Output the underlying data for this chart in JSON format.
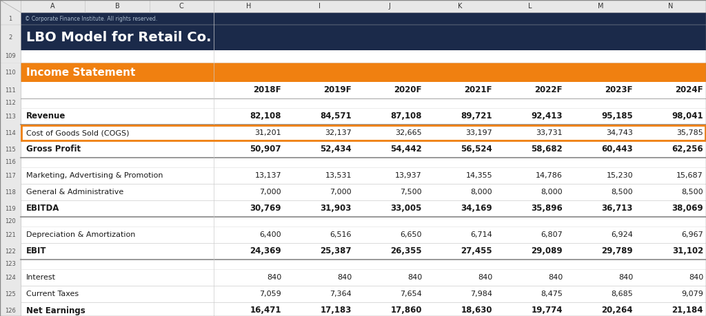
{
  "title_row1": "© Corporate Finance Institute. All rights reserved.",
  "title_row2": "LBO Model for Retail Co.",
  "section_header": "Income Statement",
  "years": [
    "2018F",
    "2019F",
    "2020F",
    "2021F",
    "2022F",
    "2023F",
    "2024F"
  ],
  "navy_bg": "#1B2A4A",
  "orange_bg": "#F08010",
  "highlight_border": "#F08010",
  "row_num_bg": "#E8E8E8",
  "col_hdr_bg": "#E8E8E8",
  "grid_line": "#BBBBBB",
  "body_bg": "#FFFFFF",
  "text_dark": "#1A1A1A",
  "text_light": "#AAAACC",
  "row_num_text": "#555555",
  "figsize": [
    10.24,
    4.59
  ],
  "dpi": 100,
  "rows": [
    {
      "label": "Revenue",
      "bold": true,
      "values": [
        "82,108",
        "84,571",
        "87,108",
        "89,721",
        "92,413",
        "95,185",
        "98,041"
      ],
      "spacer_before": false,
      "highlight": false,
      "row_num": 113
    },
    {
      "label": "Cost of Goods Sold (COGS)",
      "bold": false,
      "values": [
        "31,201",
        "32,137",
        "32,665",
        "33,197",
        "33,731",
        "34,743",
        "35,785"
      ],
      "spacer_before": false,
      "highlight": true,
      "row_num": 114
    },
    {
      "label": "Gross Profit",
      "bold": true,
      "values": [
        "50,907",
        "52,434",
        "54,442",
        "56,524",
        "58,682",
        "60,443",
        "62,256"
      ],
      "spacer_before": false,
      "highlight": false,
      "row_num": 115
    },
    {
      "label": "Marketing, Advertising & Promotion",
      "bold": false,
      "values": [
        "13,137",
        "13,531",
        "13,937",
        "14,355",
        "14,786",
        "15,230",
        "15,687"
      ],
      "spacer_before": true,
      "highlight": false,
      "row_num": 117
    },
    {
      "label": "General & Administrative",
      "bold": false,
      "values": [
        "7,000",
        "7,000",
        "7,500",
        "8,000",
        "8,000",
        "8,500",
        "8,500"
      ],
      "spacer_before": false,
      "highlight": false,
      "row_num": 118
    },
    {
      "label": "EBITDA",
      "bold": true,
      "values": [
        "30,769",
        "31,903",
        "33,005",
        "34,169",
        "35,896",
        "36,713",
        "38,069"
      ],
      "spacer_before": false,
      "highlight": false,
      "row_num": 119
    },
    {
      "label": "Depreciation & Amortization",
      "bold": false,
      "values": [
        "6,400",
        "6,516",
        "6,650",
        "6,714",
        "6,807",
        "6,924",
        "6,967"
      ],
      "spacer_before": true,
      "highlight": false,
      "row_num": 121
    },
    {
      "label": "EBIT",
      "bold": true,
      "values": [
        "24,369",
        "25,387",
        "26,355",
        "27,455",
        "29,089",
        "29,789",
        "31,102"
      ],
      "spacer_before": false,
      "highlight": false,
      "row_num": 122
    },
    {
      "label": "Interest",
      "bold": false,
      "values": [
        "840",
        "840",
        "840",
        "840",
        "840",
        "840",
        "840"
      ],
      "spacer_before": true,
      "highlight": false,
      "row_num": 124
    },
    {
      "label": "Current Taxes",
      "bold": false,
      "values": [
        "7,059",
        "7,364",
        "7,654",
        "7,984",
        "8,475",
        "8,685",
        "9,079"
      ],
      "spacer_before": false,
      "highlight": false,
      "row_num": 125
    },
    {
      "label": "Net Earnings",
      "bold": true,
      "values": [
        "16,471",
        "17,183",
        "17,860",
        "18,630",
        "19,774",
        "20,264",
        "21,184"
      ],
      "spacer_before": false,
      "highlight": false,
      "row_num": 126
    }
  ]
}
